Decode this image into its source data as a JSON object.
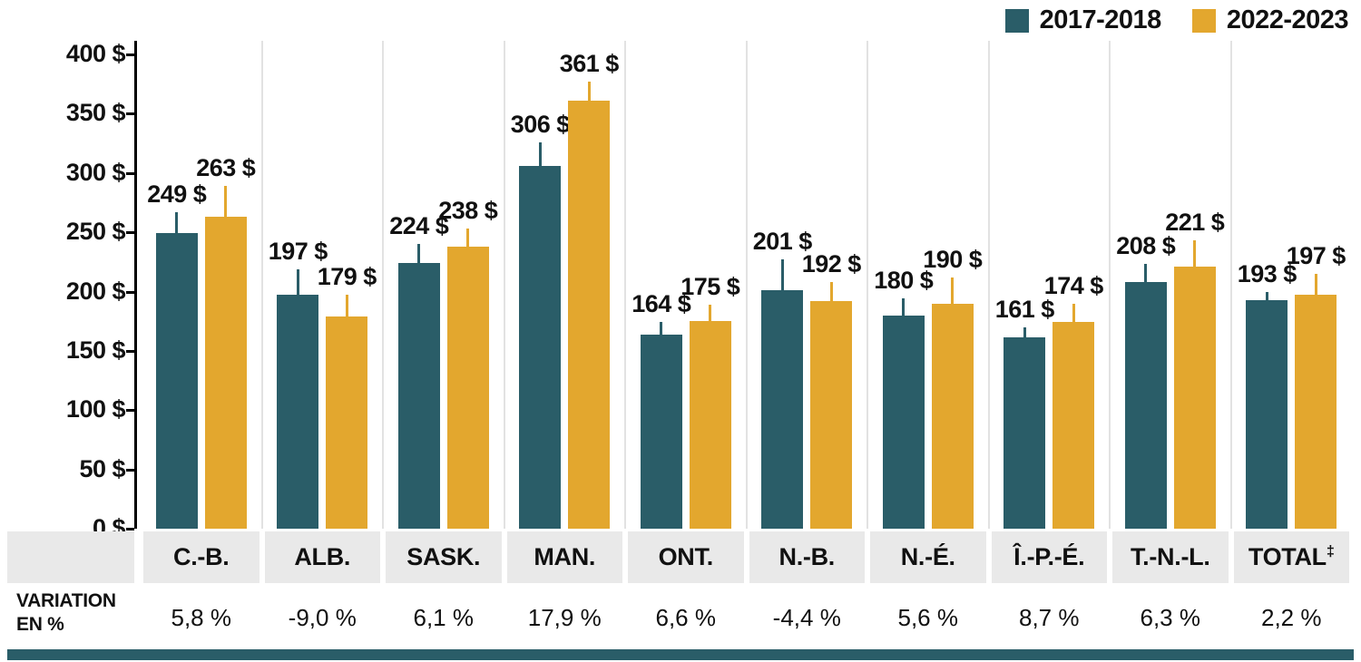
{
  "legend": {
    "items": [
      {
        "label": "2017-2018",
        "color": "#2a5d68"
      },
      {
        "label": "2022-2023",
        "color": "#e3a72e"
      }
    ]
  },
  "variation_header": {
    "line1": "VARIATION",
    "line2": "EN %"
  },
  "chart_data": {
    "type": "bar",
    "title": "",
    "xlabel": "",
    "ylabel": "",
    "ylim": [
      0,
      400
    ],
    "grid": "vertical-group-separators",
    "legend_position": "top-right",
    "categories": [
      {
        "label": "C.-B.",
        "sup": ""
      },
      {
        "label": "ALB.",
        "sup": ""
      },
      {
        "label": "SASK.",
        "sup": ""
      },
      {
        "label": "MAN.",
        "sup": ""
      },
      {
        "label": "ONT.",
        "sup": ""
      },
      {
        "label": "N.-B.",
        "sup": ""
      },
      {
        "label": "N.-É.",
        "sup": ""
      },
      {
        "label": "Î.-P.-É.",
        "sup": ""
      },
      {
        "label": "T.-N.-L.",
        "sup": ""
      },
      {
        "label": "TOTAL",
        "sup": "‡"
      }
    ],
    "series": [
      {
        "name": "2017-2018",
        "color": "#2a5d68",
        "values": [
          249,
          197,
          224,
          306,
          164,
          201,
          180,
          161,
          208,
          193
        ],
        "errors": [
          18,
          22,
          16,
          20,
          10,
          26,
          14,
          9,
          15,
          7
        ],
        "value_labels": [
          "249 $",
          "197 $",
          "224 $",
          "306 $",
          "164 $",
          "201 $",
          "180 $",
          "161 $",
          "208 $",
          "193 $"
        ]
      },
      {
        "name": "2022-2023",
        "color": "#e3a72e",
        "values": [
          263,
          179,
          238,
          361,
          175,
          192,
          190,
          174,
          221,
          197
        ],
        "errors": [
          26,
          18,
          15,
          16,
          14,
          16,
          22,
          16,
          22,
          18
        ],
        "value_labels": [
          "263 $",
          "179 $",
          "238 $",
          "361 $",
          "175 $",
          "192 $",
          "190 $",
          "174 $",
          "221 $",
          "197 $"
        ]
      }
    ],
    "yticks": [
      {
        "value": 400,
        "label": "400 $"
      },
      {
        "value": 350,
        "label": "350 $"
      },
      {
        "value": 300,
        "label": "300 $"
      },
      {
        "value": 250,
        "label": "250 $"
      },
      {
        "value": 200,
        "label": "200 $"
      },
      {
        "value": 150,
        "label": "150 $"
      },
      {
        "value": 100,
        "label": "100 $"
      },
      {
        "value": 50,
        "label": "50 $"
      },
      {
        "value": 0,
        "label": "0 $"
      }
    ],
    "variation_values": [
      "5,8 %",
      "-9,0 %",
      "6,1 %",
      "17,9 %",
      "6,6 %",
      "-4,4 %",
      "5,6 %",
      "8,7 %",
      "6,3 %",
      "2,2 %"
    ]
  }
}
